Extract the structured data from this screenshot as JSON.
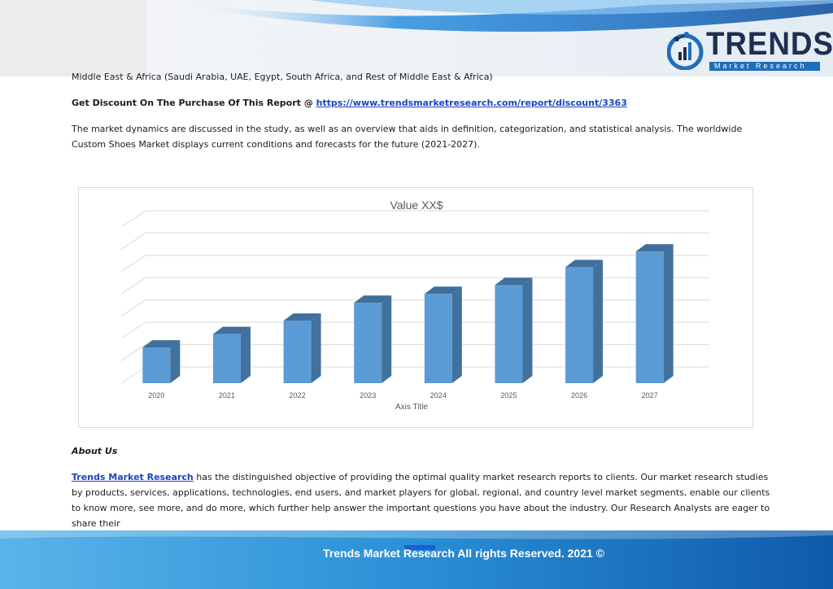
{
  "logo": {
    "word": "TRENDS",
    "tagline": "Market Research"
  },
  "content": {
    "regions_line": "Middle East & Africa (Saudi Arabia, UAE, Egypt, South Africa, and Rest of Middle East & Africa)",
    "discount_label": "Get Discount On The Purchase Of This Report @ ",
    "discount_link": "https://www.trendsmarketresearch.com/report/discount/3363",
    "dynamics_paragraph": "The market dynamics are discussed in the study, as well as an overview that aids in definition, categorization, and statistical analysis. The worldwide Custom Shoes Market displays current conditions and forecasts for the future (2021-2027).",
    "about_title": "About Us",
    "about_link": "Trends Market Research",
    "about_paragraph": " has the distinguished objective of providing the optimal quality market research reports to clients. Our market research studies by products, services, applications, technologies, end users, and market players for global, regional, and country level market segments, enable our clients to know more, see more, and do more, which further help answer the important questions you have about the industry. Our Research Analysts are eager to share their"
  },
  "footer": {
    "text": "Trends Market Research All rights Reserved. 2021 ©"
  },
  "colors": {
    "bar_front": "#5b9bd5",
    "bar_side": "#41719c",
    "bar_top": "#3f6f9c",
    "footer": "#1f78c0",
    "link": "#1a44c2"
  },
  "chart_data": {
    "type": "bar",
    "title": "Value XX$",
    "xlabel": "Axis Title",
    "ylabel": "",
    "categories": [
      "2020",
      "2021",
      "2022",
      "2023",
      "2024",
      "2025",
      "2026",
      "2027"
    ],
    "values": [
      1.6,
      2.2,
      2.8,
      3.6,
      4.0,
      4.4,
      5.2,
      5.9
    ],
    "ylim": [
      0,
      7
    ],
    "gridlines": 7,
    "style": "3d-column"
  }
}
